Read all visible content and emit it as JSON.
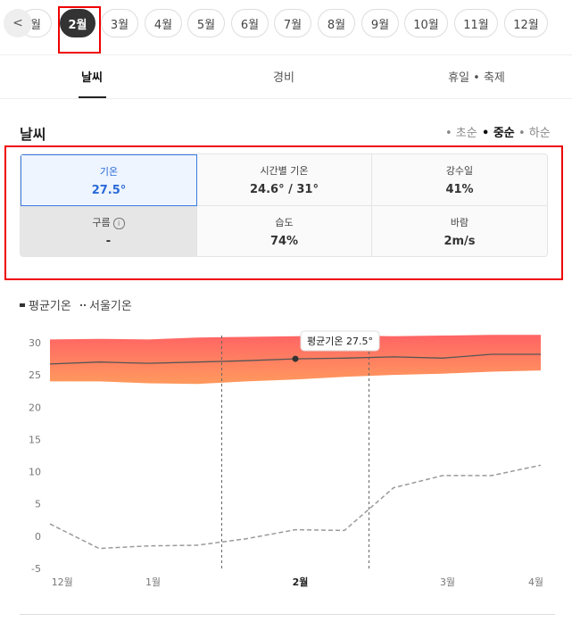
{
  "nav": {
    "months": [
      "월",
      "2월",
      "3월",
      "4월",
      "5월",
      "6월",
      "7월",
      "8월",
      "9월",
      "10월",
      "11월",
      "12월"
    ],
    "selected": 1
  },
  "tabs": {
    "items": [
      "날씨",
      "경비",
      "휴일 • 축제"
    ],
    "selected": 0
  },
  "section": {
    "title": "날씨",
    "filters": [
      "• 초순",
      "• 중순",
      "• 하순"
    ],
    "selected": 1
  },
  "stats": [
    {
      "label": "기온",
      "value": "27.5°"
    },
    {
      "label": "시간별 기온",
      "value": "24.6° / 31°"
    },
    {
      "label": "강수일",
      "value": "41%"
    },
    {
      "label": "구름",
      "value": "-"
    },
    {
      "label": "습도",
      "value": "74%"
    },
    {
      "label": "바람",
      "value": "2m/s"
    }
  ],
  "chart_data": {
    "type": "line",
    "x": [
      0,
      10,
      20,
      30,
      40,
      50,
      60,
      70,
      80,
      90,
      100
    ],
    "series": [
      {
        "name": "평균기온",
        "color": "#555555",
        "values": [
          26.7,
          27.0,
          26.8,
          27.0,
          27.2,
          27.5,
          27.6,
          27.8,
          27.6,
          28.2,
          28.2
        ],
        "upper": [
          30.5,
          30.6,
          30.5,
          30.8,
          30.9,
          31.0,
          31.1,
          31.0,
          31.1,
          31.2,
          31.2
        ],
        "lower": [
          24.0,
          24.0,
          23.7,
          23.6,
          24.0,
          24.3,
          24.7,
          25.0,
          25.2,
          25.5,
          25.7
        ]
      },
      {
        "name": "서울기온",
        "color": "#9a9a9a",
        "dashed": true,
        "values": [
          1.9,
          -1.9,
          -1.5,
          -1.4,
          -0.4,
          1.0,
          0.9,
          7.5,
          9.4,
          9.4,
          11.0
        ]
      }
    ],
    "xlim": [
      0,
      100
    ],
    "ylim": [
      -5,
      30
    ],
    "yticks": [
      -5,
      0,
      5,
      10,
      15,
      20,
      25,
      30
    ],
    "xticks": [
      {
        "value": 2.5,
        "label": "12월"
      },
      {
        "value": 21,
        "label": "1월"
      },
      {
        "value": 51,
        "label": "2월"
      },
      {
        "value": 81,
        "label": "3월"
      },
      {
        "value": 99,
        "label": "4월"
      }
    ],
    "vlines": [
      35,
      65
    ],
    "tooltip": "평균기온 27.5°",
    "tooltip_x": 50
  }
}
